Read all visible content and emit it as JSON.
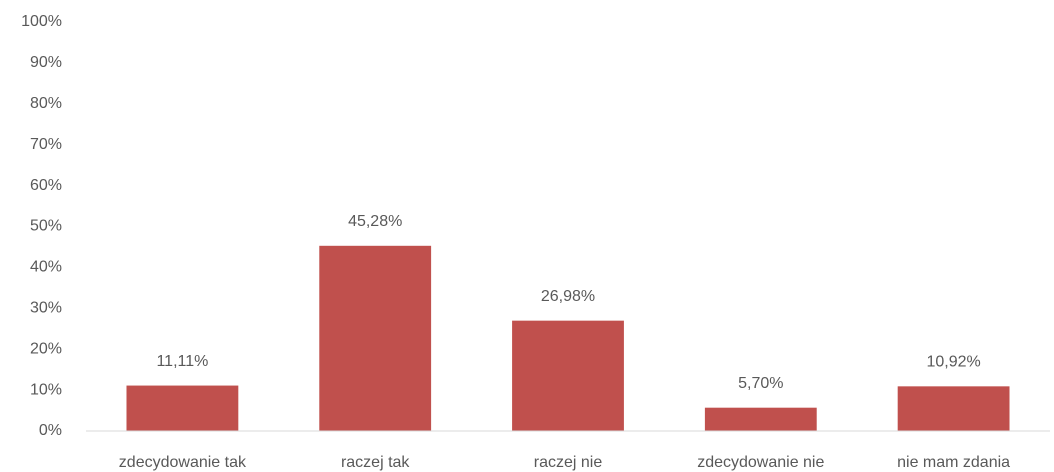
{
  "chart_data": {
    "type": "bar",
    "categories": [
      "zdecydowanie tak",
      "raczej tak",
      "raczej nie",
      "zdecydowanie nie",
      "nie mam zdania"
    ],
    "values": [
      11.11,
      45.28,
      26.98,
      5.7,
      10.92
    ],
    "value_labels": [
      "11,11%",
      "45,28%",
      "26,98%",
      "5,70%",
      "10,92%"
    ],
    "color": "#c0504d",
    "ylim": [
      0,
      100
    ],
    "yticks": [
      {
        "value": 0,
        "label": "0%"
      },
      {
        "value": 10,
        "label": "10%"
      },
      {
        "value": 20,
        "label": "20%"
      },
      {
        "value": 30,
        "label": "30%"
      },
      {
        "value": 40,
        "label": "40%"
      },
      {
        "value": 50,
        "label": "50%"
      },
      {
        "value": 60,
        "label": "60%"
      },
      {
        "value": 70,
        "label": "70%"
      },
      {
        "value": 80,
        "label": "80%"
      },
      {
        "value": 90,
        "label": "90%"
      },
      {
        "value": 100,
        "label": "100%"
      }
    ],
    "grid": false
  }
}
